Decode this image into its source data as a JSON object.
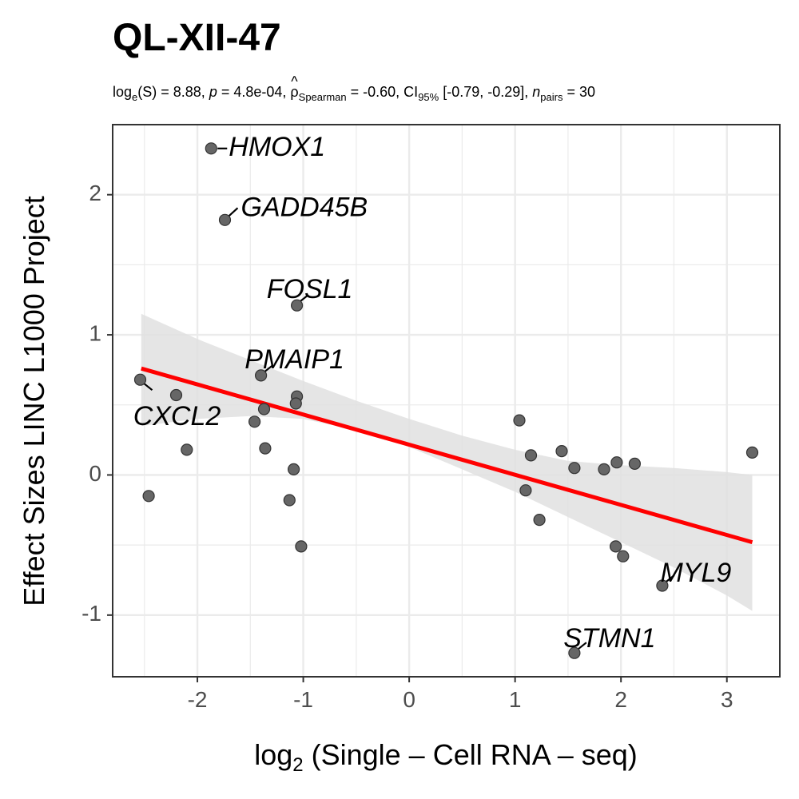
{
  "chart_data": {
    "type": "scatter",
    "title": "QL-XII-47",
    "subtitle": {
      "log_prefix": "log",
      "log_sub": "e",
      "S_part": "(S) = 8.88, ",
      "p_sym": "p",
      "p_val": " = 4.8e-04, ",
      "rho_sym": "ρ",
      "rho_hat": "^",
      "rho_sub": "Spearman",
      "rho_val": " = -0.60, CI",
      "ci_sub": "95%",
      "ci_val": " [-0.79, -0.29], ",
      "n_sym": "n",
      "n_sub": "pairs",
      "n_val": " = 30"
    },
    "xlabel": {
      "prefix": "log",
      "sub": "2",
      "text": "(Single – Cell RNA – seq)"
    },
    "ylabel": "Effect Sizes LINC L1000 Project",
    "xlim": [
      -2.8,
      3.5
    ],
    "ylim": [
      -1.44,
      2.5
    ],
    "x_ticks": [
      -2,
      -1,
      0,
      1,
      2,
      3
    ],
    "x_tick_labels": [
      "-2",
      "-1",
      "0",
      "1",
      "2",
      "3"
    ],
    "y_ticks": [
      -1,
      0,
      1,
      2
    ],
    "y_tick_labels": [
      "-1",
      "0",
      "1",
      "2"
    ],
    "grid": true,
    "points": [
      {
        "x": -1.87,
        "y": 2.33,
        "label": "HMOX1"
      },
      {
        "x": -1.74,
        "y": 1.82,
        "label": "GADD45B"
      },
      {
        "x": -1.06,
        "y": 1.21,
        "label": "FOSL1"
      },
      {
        "x": -1.4,
        "y": 0.71,
        "label": "PMAIP1"
      },
      {
        "x": -2.54,
        "y": 0.68,
        "label": "CXCL2"
      },
      {
        "x": -2.2,
        "y": 0.57
      },
      {
        "x": -1.06,
        "y": 0.56
      },
      {
        "x": -1.07,
        "y": 0.51
      },
      {
        "x": -1.37,
        "y": 0.47
      },
      {
        "x": -1.46,
        "y": 0.38
      },
      {
        "x": -1.36,
        "y": 0.19
      },
      {
        "x": -2.1,
        "y": 0.18
      },
      {
        "x": -1.09,
        "y": 0.04
      },
      {
        "x": -2.46,
        "y": -0.15
      },
      {
        "x": -1.13,
        "y": -0.18
      },
      {
        "x": -1.02,
        "y": -0.51
      },
      {
        "x": 1.04,
        "y": 0.39
      },
      {
        "x": 1.15,
        "y": 0.14
      },
      {
        "x": 1.44,
        "y": 0.17
      },
      {
        "x": 1.56,
        "y": 0.05
      },
      {
        "x": 1.84,
        "y": 0.04
      },
      {
        "x": 1.96,
        "y": 0.09
      },
      {
        "x": 2.13,
        "y": 0.08
      },
      {
        "x": 3.24,
        "y": 0.16
      },
      {
        "x": 1.1,
        "y": -0.11
      },
      {
        "x": 1.23,
        "y": -0.32
      },
      {
        "x": 1.95,
        "y": -0.51
      },
      {
        "x": 2.02,
        "y": -0.58
      },
      {
        "x": 2.39,
        "y": -0.79,
        "label": "MYL9"
      },
      {
        "x": 1.56,
        "y": -1.27,
        "label": "STMN1"
      }
    ],
    "regression_line": {
      "x": [
        -2.53,
        3.24
      ],
      "y": [
        0.76,
        -0.48
      ],
      "color": "#ff0000"
    },
    "confidence_band": {
      "x": [
        -2.53,
        -2.0,
        -1.5,
        -1.0,
        -0.5,
        0.0,
        0.5,
        1.0,
        1.5,
        2.0,
        2.5,
        3.0,
        3.24
      ],
      "upper": [
        1.15,
        0.97,
        0.82,
        0.67,
        0.53,
        0.4,
        0.28,
        0.18,
        0.1,
        0.07,
        0.05,
        0.02,
        0.0
      ],
      "lower": [
        0.35,
        0.4,
        0.42,
        0.4,
        0.32,
        0.2,
        0.04,
        -0.12,
        -0.3,
        -0.48,
        -0.66,
        -0.86,
        -0.97
      ]
    },
    "colors": {
      "point_fill": "#666666",
      "point_stroke": "#333333",
      "band": "#e1e1e1",
      "grid": "#ebebeb",
      "panel_border": "#333333"
    }
  }
}
